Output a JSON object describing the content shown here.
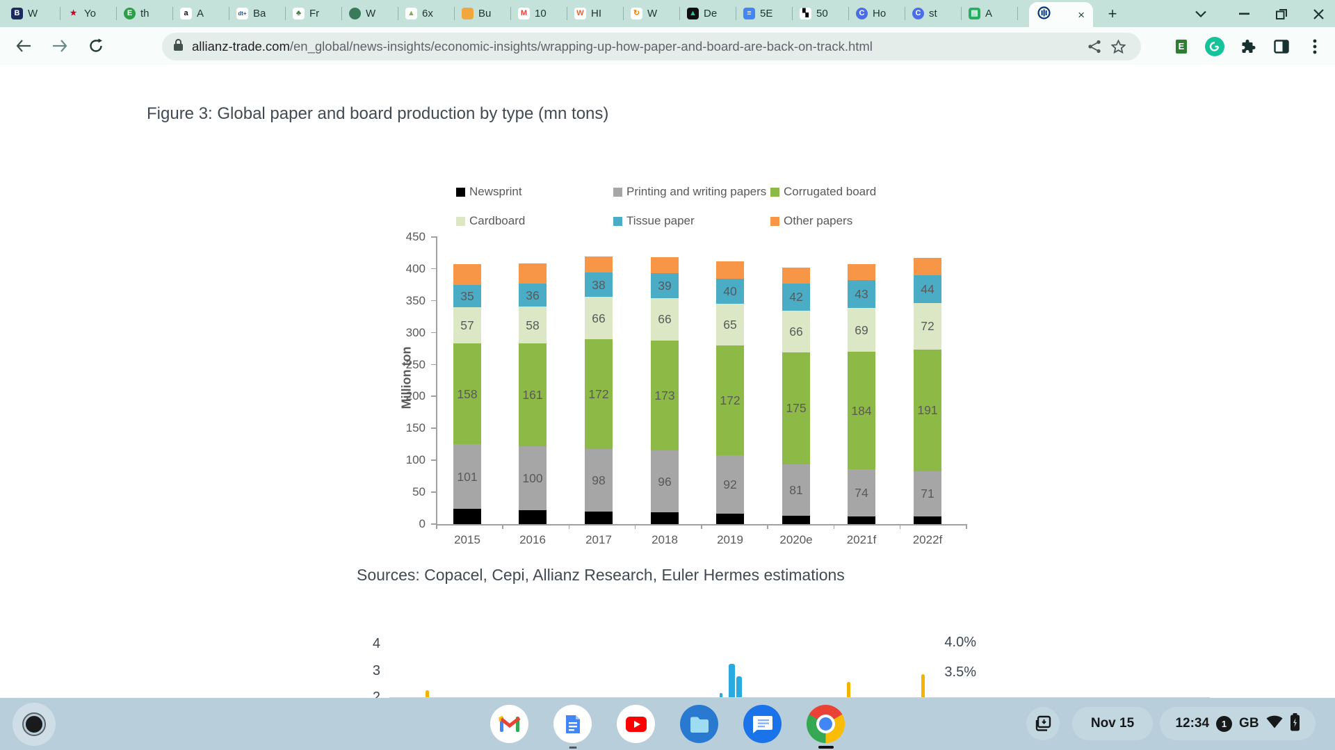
{
  "browser": {
    "tabs": [
      {
        "label": "W",
        "favicon": {
          "name": "bbc-future-favicon",
          "glyph": "B",
          "bg": "#1c2b5e",
          "fg": "#ffffff",
          "shape": "square"
        }
      },
      {
        "label": "Yo",
        "favicon": {
          "name": "maple-leaf-favicon",
          "glyph": "★",
          "bg": "none",
          "fg": "#d0021b",
          "shape": "square"
        }
      },
      {
        "label": "th",
        "favicon": {
          "name": "green-e-favicon",
          "glyph": "E",
          "bg": "#2e9e49",
          "fg": "#ffffff",
          "shape": "circle"
        }
      },
      {
        "label": "A",
        "favicon": {
          "name": "amazon-favicon",
          "glyph": "a",
          "bg": "#ffffff",
          "fg": "#111111",
          "shape": "square"
        }
      },
      {
        "label": "Ba",
        "favicon": {
          "name": "dt-plus-favicon",
          "glyph": "dt+",
          "bg": "#ffffff",
          "fg": "#1d4f91",
          "shape": "square"
        }
      },
      {
        "label": "Fr",
        "favicon": {
          "name": "tree-favicon",
          "glyph": "♣",
          "bg": "#ffffff",
          "fg": "#3e7c3e",
          "shape": "square"
        }
      },
      {
        "label": "W",
        "favicon": {
          "name": "green-oval-favicon",
          "glyph": "",
          "bg": "#39795c",
          "fg": "#ffffff",
          "shape": "circle"
        }
      },
      {
        "label": "6x",
        "favicon": {
          "name": "green-arrow-favicon",
          "glyph": "▲",
          "bg": "#ffffff",
          "fg": "#7cb342",
          "shape": "square"
        }
      },
      {
        "label": "Bu",
        "favicon": {
          "name": "shopping-bag-favicon",
          "glyph": "",
          "bg": "#f2a73d",
          "fg": "#2a56c6",
          "shape": "square"
        }
      },
      {
        "label": "10",
        "favicon": {
          "name": "red-chart-favicon",
          "glyph": "M",
          "bg": "#ffffff",
          "fg": "#e8453c",
          "shape": "square"
        }
      },
      {
        "label": "HI",
        "favicon": {
          "name": "orange-w-favicon",
          "glyph": "W",
          "bg": "#ffffff",
          "fg": "#ff5722",
          "shape": "square"
        }
      },
      {
        "label": "W",
        "favicon": {
          "name": "orange-swirl-favicon",
          "glyph": "↻",
          "bg": "#ffffff",
          "fg": "#f57c00",
          "shape": "square"
        }
      },
      {
        "label": "De",
        "favicon": {
          "name": "dark-triangle-favicon",
          "glyph": "▲",
          "bg": "#0f0f0f",
          "fg": "#27c4a0",
          "shape": "square"
        }
      },
      {
        "label": "5E",
        "favicon": {
          "name": "blue-doc-favicon",
          "glyph": "≡",
          "bg": "#4285f4",
          "fg": "#ffffff",
          "shape": "square"
        }
      },
      {
        "label": "50",
        "favicon": {
          "name": "black-blocks-favicon",
          "glyph": "▚",
          "bg": "#ffffff",
          "fg": "#000000",
          "shape": "square"
        }
      },
      {
        "label": "Ho",
        "favicon": {
          "name": "purple-c-favicon",
          "glyph": "C",
          "bg": "#4b6ee8",
          "fg": "#ffffff",
          "shape": "circle"
        }
      },
      {
        "label": "st",
        "favicon": {
          "name": "purple-c-favicon",
          "glyph": "C",
          "bg": "#4b6ee8",
          "fg": "#ffffff",
          "shape": "circle"
        }
      },
      {
        "label": "A",
        "favicon": {
          "name": "green-book-favicon",
          "glyph": "▤",
          "bg": "#27ae60",
          "fg": "#ffffff",
          "shape": "square"
        }
      }
    ],
    "active_tab": {
      "favicon_name": "allianz-favicon",
      "close_glyph": "×"
    },
    "newtab_glyph": "+",
    "url": {
      "domain": "allianz-trade.com",
      "path": "/en_global/news-insights/economic-insights/wrapping-up-how-paper-and-board-are-back-on-track.html"
    }
  },
  "page": {
    "figure_title": "Figure 3: Global paper and board production by type (mn tons)",
    "sources": "Sources: Copacel, Cepi, Allianz Research, Euler Hermes estimations"
  },
  "chart_data": [
    {
      "type": "bar",
      "stacked": true,
      "title": "Figure 3: Global paper and board production by type (mn tons)",
      "ylabel": "Million ton",
      "xlabel": "",
      "ylim": [
        0,
        450
      ],
      "ytick_step": 50,
      "grid": false,
      "legend_position": "top",
      "categories": [
        "2015",
        "2016",
        "2017",
        "2018",
        "2019",
        "2020e",
        "2021f",
        "2022f"
      ],
      "series": [
        {
          "name": "Newsprint",
          "color": "#000000",
          "labels_shown": false,
          "values": [
            24,
            22,
            20,
            19,
            16,
            13,
            12,
            12
          ]
        },
        {
          "name": "Printing and writing papers",
          "color": "#a6a6a6",
          "labels_shown": true,
          "values": [
            101,
            100,
            98,
            96,
            92,
            81,
            74,
            71
          ]
        },
        {
          "name": "Corrugated board",
          "color": "#8dba47",
          "labels_shown": true,
          "values": [
            158,
            161,
            172,
            173,
            172,
            175,
            184,
            191
          ]
        },
        {
          "name": "Cardboard",
          "color": "#dce8c5",
          "labels_shown": true,
          "values": [
            57,
            58,
            66,
            66,
            65,
            66,
            69,
            72
          ]
        },
        {
          "name": "Tissue paper",
          "color": "#4bacc6",
          "labels_shown": true,
          "values": [
            35,
            36,
            38,
            39,
            40,
            42,
            43,
            44
          ]
        },
        {
          "name": "Other papers",
          "color": "#f79646",
          "labels_shown": false,
          "values": [
            32,
            32,
            26,
            25,
            27,
            25,
            25,
            27
          ]
        }
      ],
      "value_label_color": "#595959"
    },
    {
      "type": "line",
      "note": "partially visible chart at page fold",
      "left_axis_ticks": [
        "4",
        "3",
        "2"
      ],
      "right_axis_ticks": [
        "4.0%",
        "3.5%"
      ],
      "series_colors": {
        "blue": "#29abe2",
        "yellow": "#f5b301"
      },
      "spikes": [
        {
          "x": 612,
          "w": 5,
          "h": 10,
          "color": "#f5b301"
        },
        {
          "x": 1035,
          "w": 4,
          "h": 6,
          "color": "#29abe2"
        },
        {
          "x": 1048,
          "w": 9,
          "h": 48,
          "color": "#29abe2"
        },
        {
          "x": 1059,
          "w": 8,
          "h": 30,
          "color": "#29abe2"
        },
        {
          "x": 1218,
          "w": 5,
          "h": 22,
          "color": "#f5b301"
        },
        {
          "x": 1325,
          "w": 5,
          "h": 33,
          "color": "#f5b301"
        }
      ]
    }
  ],
  "shelf": {
    "date": "Nov 15",
    "time": "12:34",
    "notification_count": "1",
    "keyboard_layout": "GB",
    "apps": [
      "gmail",
      "google-docs",
      "youtube",
      "files",
      "messages",
      "chrome"
    ]
  }
}
